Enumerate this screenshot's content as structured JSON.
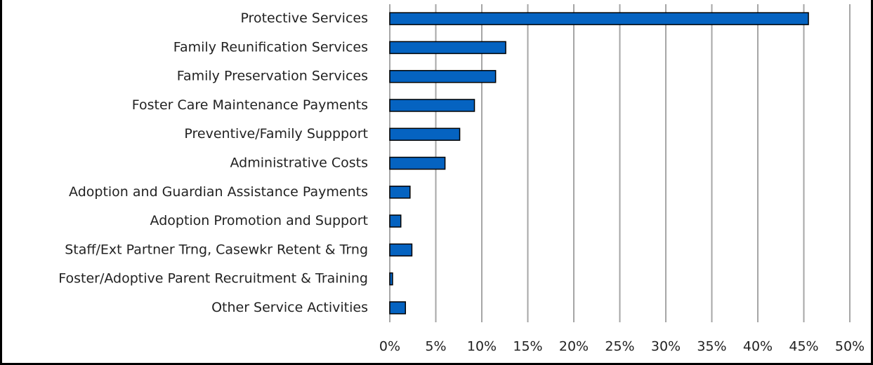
{
  "chart_data": {
    "type": "hbar",
    "categories": [
      "Protective Services",
      "Family Reunification Services",
      "Family Preservation Services",
      "Foster Care Maintenance Payments",
      "Preventive/Family Suppport",
      "Administrative Costs",
      "Adoption and Guardian Assistance Payments",
      "Adoption Promotion and Support",
      "Staff/Ext Partner Trng, Casewkr Retent & Trng",
      "Foster/Adoptive Parent Recruitment & Training",
      "Other Service Activities"
    ],
    "values": [
      45.5,
      12.6,
      11.5,
      9.2,
      7.6,
      6.0,
      2.2,
      1.2,
      2.4,
      0.3,
      1.7
    ],
    "color": "#0563c1",
    "xlim": [
      0,
      50
    ],
    "xticks": [
      {
        "value": 0,
        "label": "0%"
      },
      {
        "value": 5,
        "label": "5%"
      },
      {
        "value": 10,
        "label": "10%"
      },
      {
        "value": 15,
        "label": "15%"
      },
      {
        "value": 20,
        "label": "20%"
      },
      {
        "value": 25,
        "label": "25%"
      },
      {
        "value": 30,
        "label": "30%"
      },
      {
        "value": 35,
        "label": "35%"
      },
      {
        "value": 40,
        "label": "40%"
      },
      {
        "value": 45,
        "label": "45%"
      },
      {
        "value": 50,
        "label": "50%"
      }
    ],
    "grid": true
  }
}
